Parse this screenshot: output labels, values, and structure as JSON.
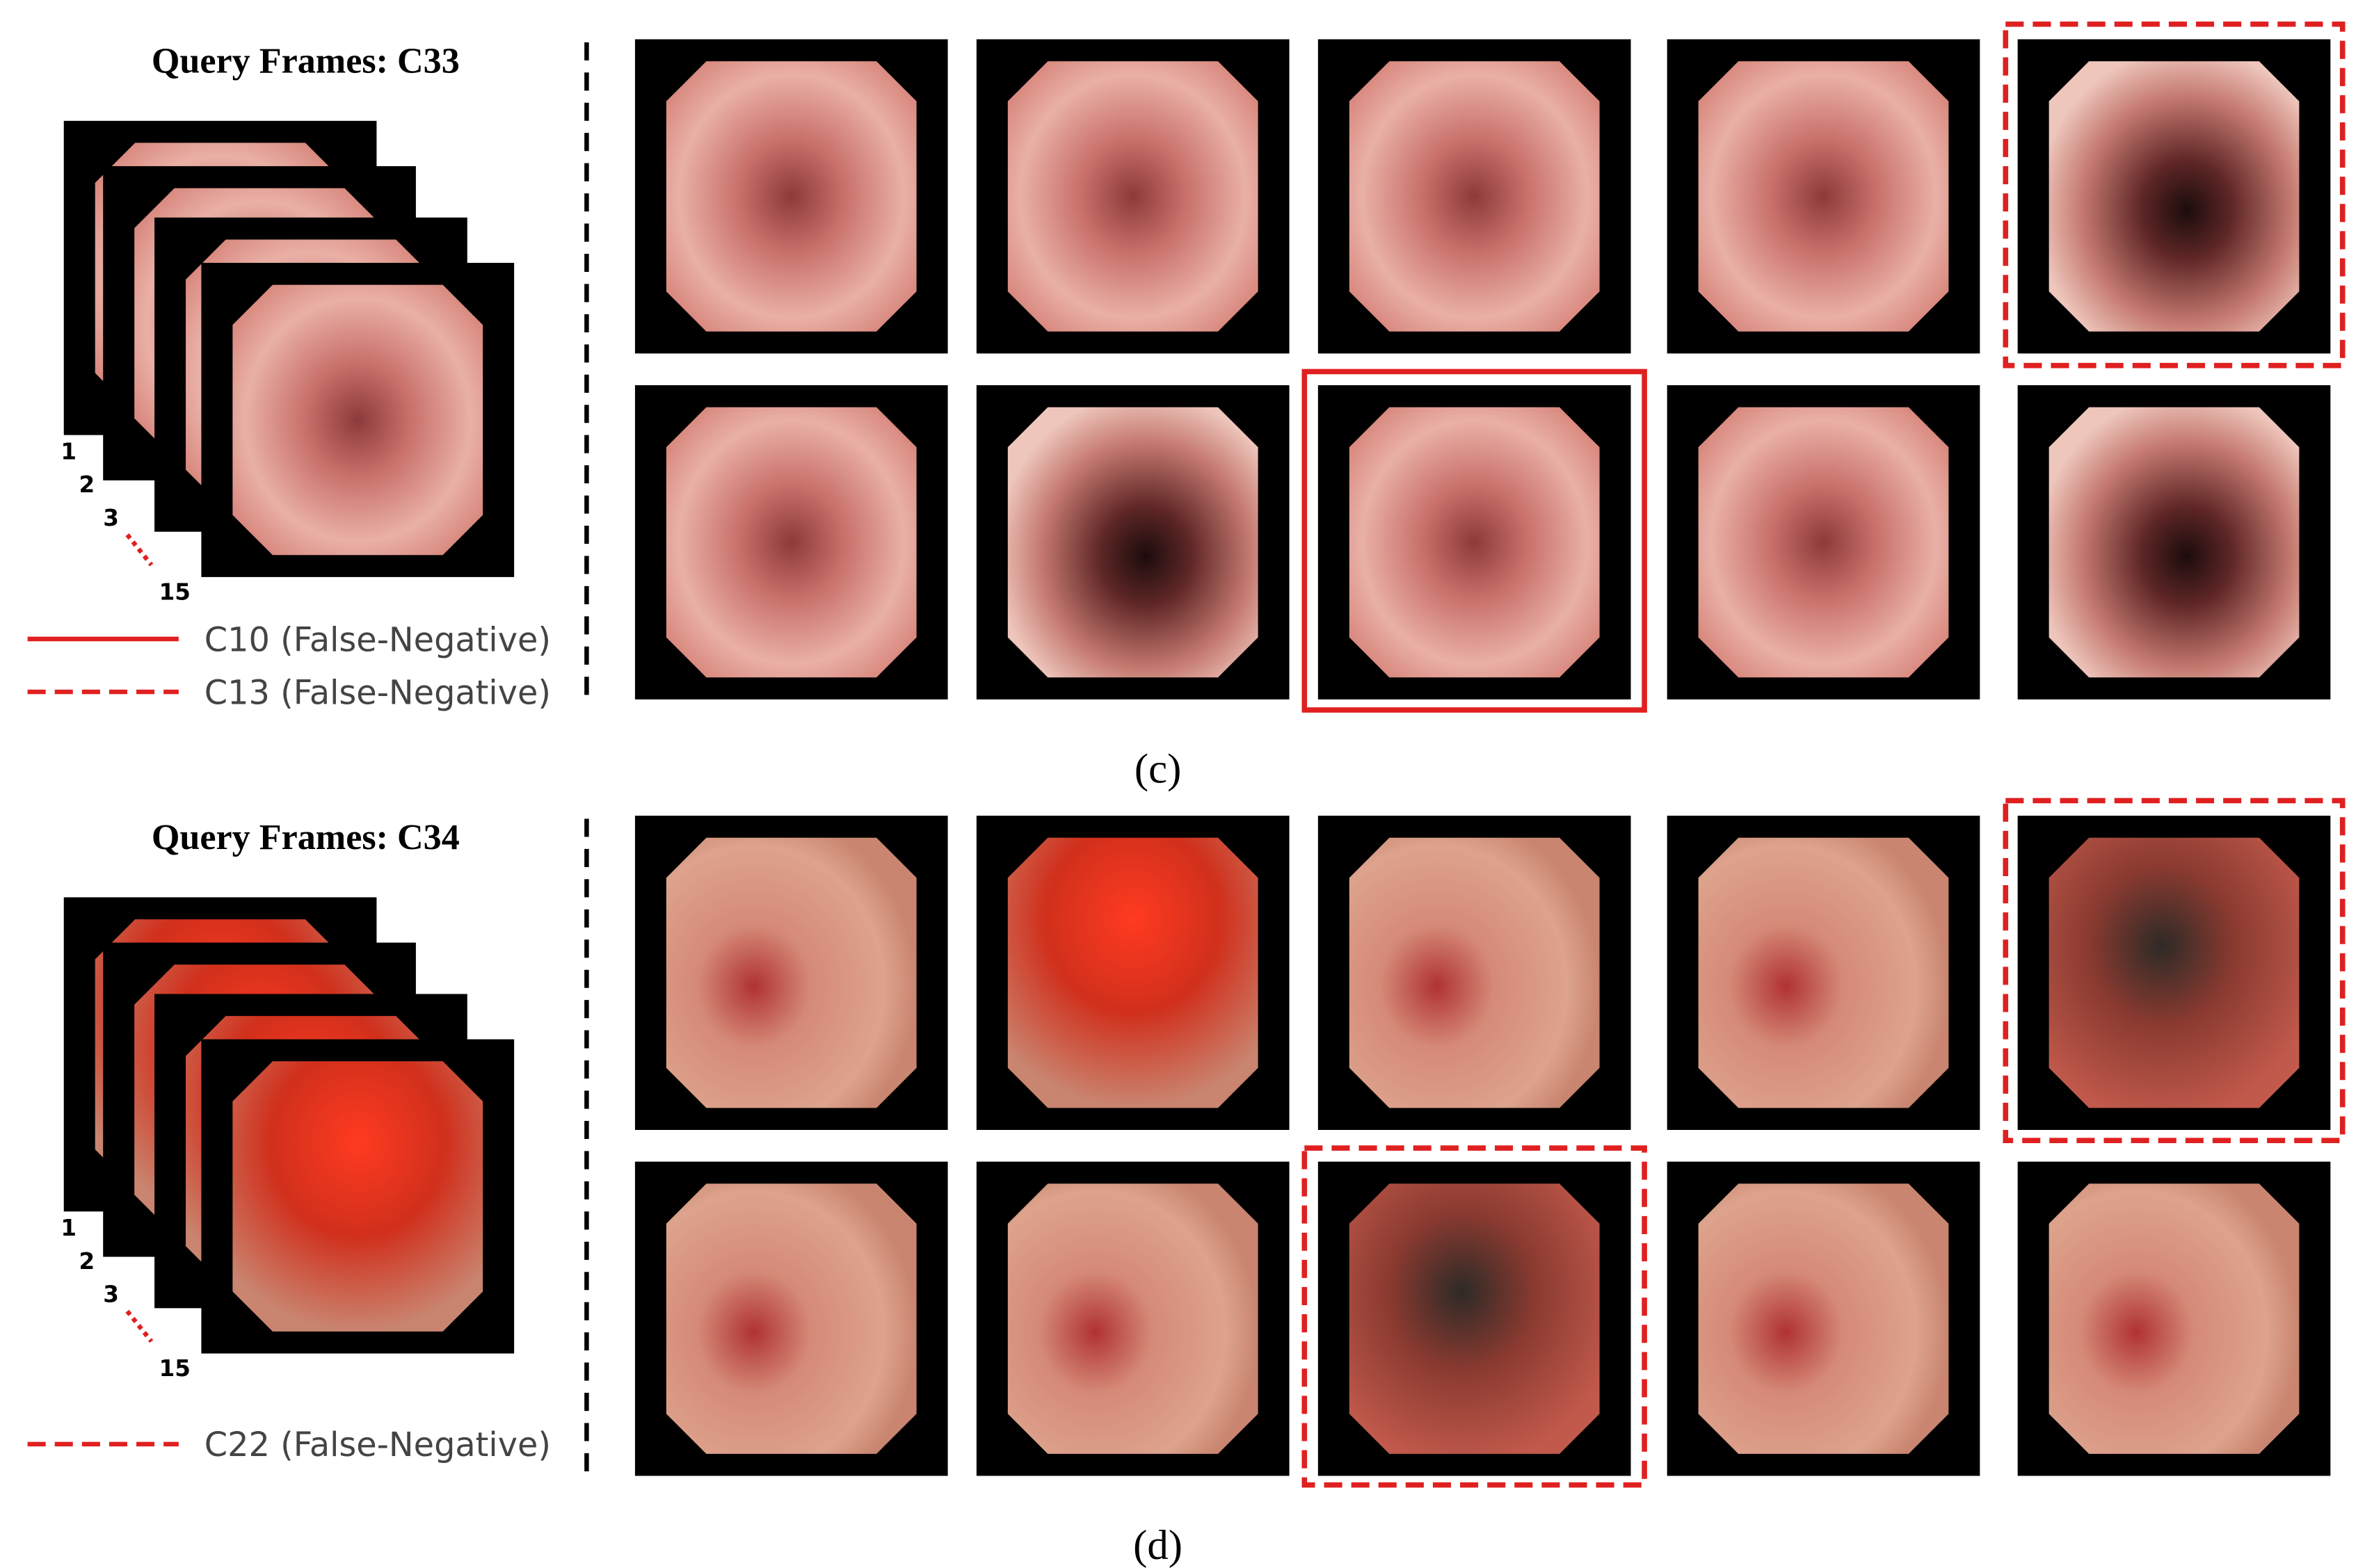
{
  "panels": [
    {
      "title": "Query Frames: C33",
      "stack_labels": [
        "1",
        "2",
        "3",
        "15"
      ],
      "legend": [
        "C10 (False-Negative)",
        "C13 (False-Negative)"
      ],
      "caption": "(c)"
    },
    {
      "title": "Query Frames: C34",
      "stack_labels": [
        "1",
        "2",
        "3",
        "15"
      ],
      "legend": [
        "C22 (False-Negative)"
      ],
      "caption": "(d)"
    }
  ]
}
